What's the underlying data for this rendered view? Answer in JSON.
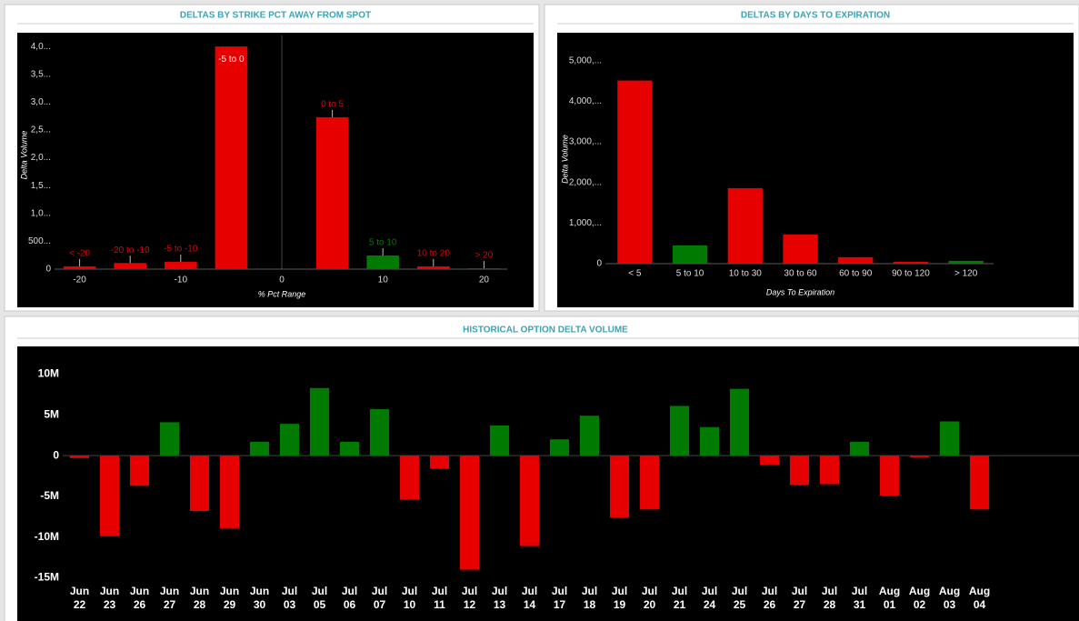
{
  "chart_data": [
    {
      "type": "bar",
      "title": "DELTAS BY STRIKE PCT AWAY FROM SPOT",
      "x_label": "% Pct Range",
      "y_label": "Delta Volume",
      "x": [
        -20,
        -15,
        -10,
        -5,
        5,
        10,
        15,
        20
      ],
      "labels": [
        "< -20",
        "-20 to -10",
        "-5 to -10",
        "-5 to 0",
        "0 to 5",
        "5 to 10",
        "10 to 20",
        "> 20"
      ],
      "values": [
        50000,
        110000,
        130000,
        4000000,
        2730000,
        245000,
        50000,
        15000
      ],
      "colors": [
        "#e60000",
        "#e60000",
        "#e60000",
        "#e60000",
        "#e60000",
        "#007a00",
        "#e60000",
        "#e60000"
      ],
      "xlim": [
        -22.3,
        22.3
      ],
      "xticks": [
        -20,
        -10,
        0,
        10,
        20
      ],
      "ylim": [
        0,
        4100000
      ],
      "yticks": [
        0,
        {
          "value": 500000,
          "label": "500..."
        },
        {
          "value": 1000000,
          "label": "1,0..."
        },
        {
          "value": 1500000,
          "label": "1,5..."
        },
        {
          "value": 2000000,
          "label": "2,0..."
        },
        {
          "value": 2500000,
          "label": "2,5..."
        },
        {
          "value": 3000000,
          "label": "3,0..."
        },
        {
          "value": 3500000,
          "label": "3,5..."
        },
        {
          "value": 4000000,
          "label": "4,0..."
        }
      ]
    },
    {
      "type": "bar",
      "title": "DELTAS BY DAYS TO EXPIRATION",
      "x_label": "Days To Expiration",
      "y_label": "Delta Volume",
      "categories": [
        "< 5",
        "5 to 10",
        "10 to 30",
        "30 to 60",
        "60 to 90",
        "90 to 120",
        "> 120"
      ],
      "values": [
        4510000,
        450000,
        1860000,
        720000,
        160000,
        45000,
        70000
      ],
      "colors": [
        "#e60000",
        "#007a00",
        "#e60000",
        "#e60000",
        "#e60000",
        "#e60000",
        "#007a00"
      ],
      "ylim": [
        0,
        5150000
      ],
      "yticks": [
        0,
        {
          "value": 1000000,
          "label": "1,000,..."
        },
        {
          "value": 2000000,
          "label": "2,000,..."
        },
        {
          "value": 3000000,
          "label": "3,000,..."
        },
        {
          "value": 4000000,
          "label": "4,000,..."
        },
        {
          "value": 5000000,
          "label": "5,000,..."
        }
      ]
    },
    {
      "type": "bar",
      "title": "HISTORICAL OPTION DELTA VOLUME",
      "categories": [
        "Jun 22",
        "Jun 23",
        "Jun 26",
        "Jun 27",
        "Jun 28",
        "Jun 29",
        "Jun 30",
        "Jul 03",
        "Jul 05",
        "Jul 06",
        "Jul 07",
        "Jul 10",
        "Jul 11",
        "Jul 12",
        "Jul 13",
        "Jul 14",
        "Jul 17",
        "Jul 18",
        "Jul 19",
        "Jul 20",
        "Jul 21",
        "Jul 24",
        "Jul 25",
        "Jul 26",
        "Jul 27",
        "Jul 28",
        "Jul 31",
        "Aug 01",
        "Aug 02",
        "Aug 03",
        "Aug 04"
      ],
      "values": [
        -300000,
        -9900000,
        -3700000,
        4100000,
        -6800000,
        -8900000,
        1700000,
        3900000,
        8300000,
        1700000,
        5700000,
        -5400000,
        -1600000,
        -14000000,
        3700000,
        -11100000,
        2000000,
        4900000,
        -7600000,
        -6600000,
        6100000,
        3500000,
        8200000,
        -1100000,
        -3600000,
        -3500000,
        1700000,
        -4900000,
        -200000,
        4200000,
        -6600000
      ],
      "colors": [
        "#e60000",
        "#e60000",
        "#e60000",
        "#007a00",
        "#e60000",
        "#e60000",
        "#007a00",
        "#007a00",
        "#007a00",
        "#007a00",
        "#007a00",
        "#e60000",
        "#e60000",
        "#e60000",
        "#007a00",
        "#e60000",
        "#007a00",
        "#007a00",
        "#e60000",
        "#e60000",
        "#007a00",
        "#007a00",
        "#007a00",
        "#e60000",
        "#e60000",
        "#e60000",
        "#007a00",
        "#e60000",
        "#e60000",
        "#007a00",
        "#e60000"
      ],
      "ylim": [
        -15500000,
        12400000
      ],
      "yticks": [
        {
          "value": -15000000,
          "label": "-15M"
        },
        {
          "value": -10000000,
          "label": "-10M"
        },
        {
          "value": -5000000,
          "label": "-5M"
        },
        0,
        {
          "value": 5000000,
          "label": "5M"
        },
        {
          "value": 10000000,
          "label": "10M"
        }
      ]
    }
  ]
}
